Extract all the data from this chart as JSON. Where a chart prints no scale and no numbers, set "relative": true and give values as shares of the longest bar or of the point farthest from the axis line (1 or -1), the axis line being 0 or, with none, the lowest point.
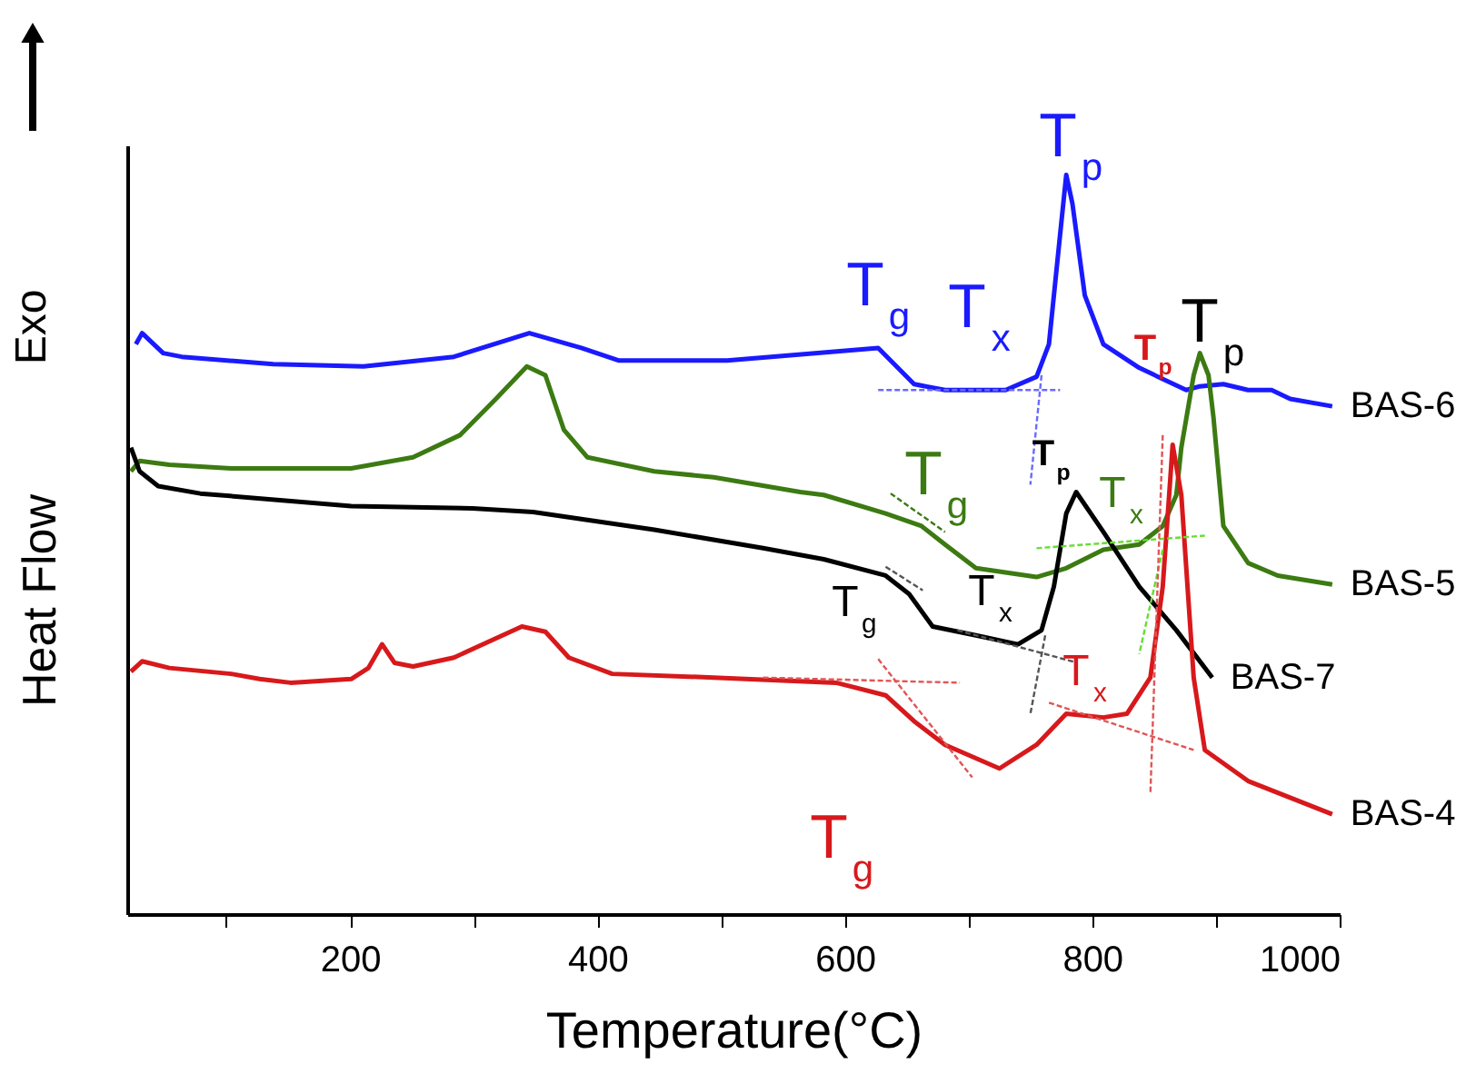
{
  "chart_data": {
    "type": "line",
    "relative": true,
    "xlabel": "Temperature(°C)",
    "ylabel": "Heat Flow",
    "xlim": [
      20,
      1000
    ],
    "xticks": [
      {
        "value": 100,
        "label": null
      },
      200,
      {
        "value": 300,
        "label": null
      },
      400,
      {
        "value": 500,
        "label": null
      },
      600,
      {
        "value": 700,
        "label": null
      },
      800,
      {
        "value": 900,
        "label": null
      },
      1000
    ],
    "tick_labels": "x",
    "grid": false,
    "legend": false,
    "marker": "none",
    "line_style": "solid",
    "series": [
      {
        "name": "BAS-6",
        "color": "#1a1aff",
        "x": [
          27,
          32,
          49,
          64,
          138,
          211,
          284,
          345,
          387,
          417,
          505,
          627,
          656,
          681,
          730,
          755,
          765,
          774,
          779,
          784,
          794,
          809,
          838,
          876,
          887,
          906,
          926,
          945,
          960,
          994
        ],
        "values": [
          0.771,
          0.786,
          0.759,
          0.754,
          0.744,
          0.741,
          0.754,
          0.786,
          0.766,
          0.749,
          0.749,
          0.766,
          0.717,
          0.709,
          0.709,
          0.727,
          0.771,
          0.919,
          1.0,
          0.961,
          0.837,
          0.771,
          0.739,
          0.709,
          0.714,
          0.717,
          0.709,
          0.709,
          0.697,
          0.687
        ]
      },
      {
        "name": "BAS-5",
        "color": "#3c7a12",
        "x": [
          23,
          30,
          54,
          104,
          201,
          251,
          289,
          318,
          343,
          358,
          373,
          392,
          446,
          494,
          564,
          583,
          633,
          662,
          681,
          706,
          755,
          779,
          809,
          838,
          857,
          868,
          872,
          882,
          887,
          894,
          898,
          906,
          926,
          950,
          994
        ],
        "values": [
          0.599,
          0.613,
          0.608,
          0.603,
          0.603,
          0.618,
          0.648,
          0.697,
          0.741,
          0.729,
          0.655,
          0.618,
          0.599,
          0.591,
          0.571,
          0.567,
          0.542,
          0.525,
          0.5,
          0.468,
          0.456,
          0.468,
          0.493,
          0.5,
          0.525,
          0.567,
          0.631,
          0.729,
          0.759,
          0.729,
          0.672,
          0.525,
          0.475,
          0.458,
          0.446
        ]
      },
      {
        "name": "BAS-7",
        "color": "#000000",
        "x": [
          23,
          30,
          45,
          79,
          201,
          299,
          348,
          446,
          534,
          583,
          633,
          652,
          671,
          706,
          740,
          759,
          769,
          779,
          787,
          809,
          838,
          868,
          897
        ],
        "values": [
          0.631,
          0.599,
          0.579,
          0.569,
          0.552,
          0.549,
          0.544,
          0.52,
          0.495,
          0.48,
          0.458,
          0.433,
          0.389,
          0.377,
          0.365,
          0.384,
          0.443,
          0.542,
          0.571,
          0.517,
          0.443,
          0.384,
          0.32
        ]
      },
      {
        "name": "BAS-4",
        "color": "#d7191c",
        "x": [
          23,
          32,
          54,
          104,
          127,
          152,
          201,
          215,
          226,
          236,
          251,
          284,
          339,
          358,
          377,
          412,
          494,
          593,
          633,
          656,
          681,
          725,
          755,
          779,
          809,
          828,
          847,
          857,
          865,
          872,
          882,
          891,
          926,
          994
        ],
        "values": [
          0.328,
          0.342,
          0.333,
          0.325,
          0.318,
          0.313,
          0.318,
          0.333,
          0.365,
          0.34,
          0.335,
          0.347,
          0.389,
          0.382,
          0.347,
          0.325,
          0.32,
          0.313,
          0.296,
          0.261,
          0.229,
          0.197,
          0.229,
          0.271,
          0.266,
          0.271,
          0.32,
          0.443,
          0.635,
          0.567,
          0.32,
          0.222,
          0.18,
          0.135
        ]
      },
      {
        "color": "#6a6aff",
        "line_style": "dashed",
        "x": [
          627,
          774
        ],
        "values": [
          0.709,
          0.709
        ]
      },
      {
        "color": "#6a6aff",
        "line_style": "dashed",
        "x": [
          759,
          750
        ],
        "values": [
          0.729,
          0.581
        ]
      },
      {
        "color": "#66dd33",
        "line_style": "dashed",
        "x": [
          755,
          891
        ],
        "values": [
          0.495,
          0.512
        ]
      },
      {
        "color": "#66dd33",
        "line_style": "dashed",
        "x": [
          857,
          838
        ],
        "values": [
          0.493,
          0.352
        ]
      },
      {
        "color": "#3c7a12",
        "line_style": "dashed",
        "x": [
          637,
          681
        ],
        "values": [
          0.569,
          0.517
        ]
      },
      {
        "color": "#555555",
        "line_style": "dashed",
        "x": [
          633,
          663
        ],
        "values": [
          0.47,
          0.438
        ]
      },
      {
        "color": "#555555",
        "line_style": "dashed",
        "x": [
          691,
          788
        ],
        "values": [
          0.384,
          0.34
        ]
      },
      {
        "color": "#555555",
        "line_style": "dashed",
        "x": [
          762,
          750
        ],
        "values": [
          0.377,
          0.271
        ]
      },
      {
        "color": "#e05555",
        "line_style": "dashed",
        "x": [
          534,
          693
        ],
        "values": [
          0.32,
          0.313
        ]
      },
      {
        "color": "#e05555",
        "line_style": "dashed",
        "x": [
          627,
          703
        ],
        "values": [
          0.345,
          0.185
        ]
      },
      {
        "color": "#e05555",
        "line_style": "dashed",
        "x": [
          765,
          882
        ],
        "values": [
          0.286,
          0.222
        ]
      },
      {
        "color": "#e05555",
        "line_style": "dashed",
        "x": [
          857,
          847
        ],
        "values": [
          0.648,
          0.163
        ]
      }
    ],
    "annotations": [
      "Exo",
      "T$_{g}$",
      "T$_{x}$",
      "T$_{p}$",
      "T$_{p}$",
      "T$_{p}$",
      "T$_{g}$",
      "T$_{p}$",
      "T$_{x}$",
      "T$_{g}$",
      "T$_{x}$",
      "T$_{x}$",
      "T$_{g}$"
    ]
  }
}
